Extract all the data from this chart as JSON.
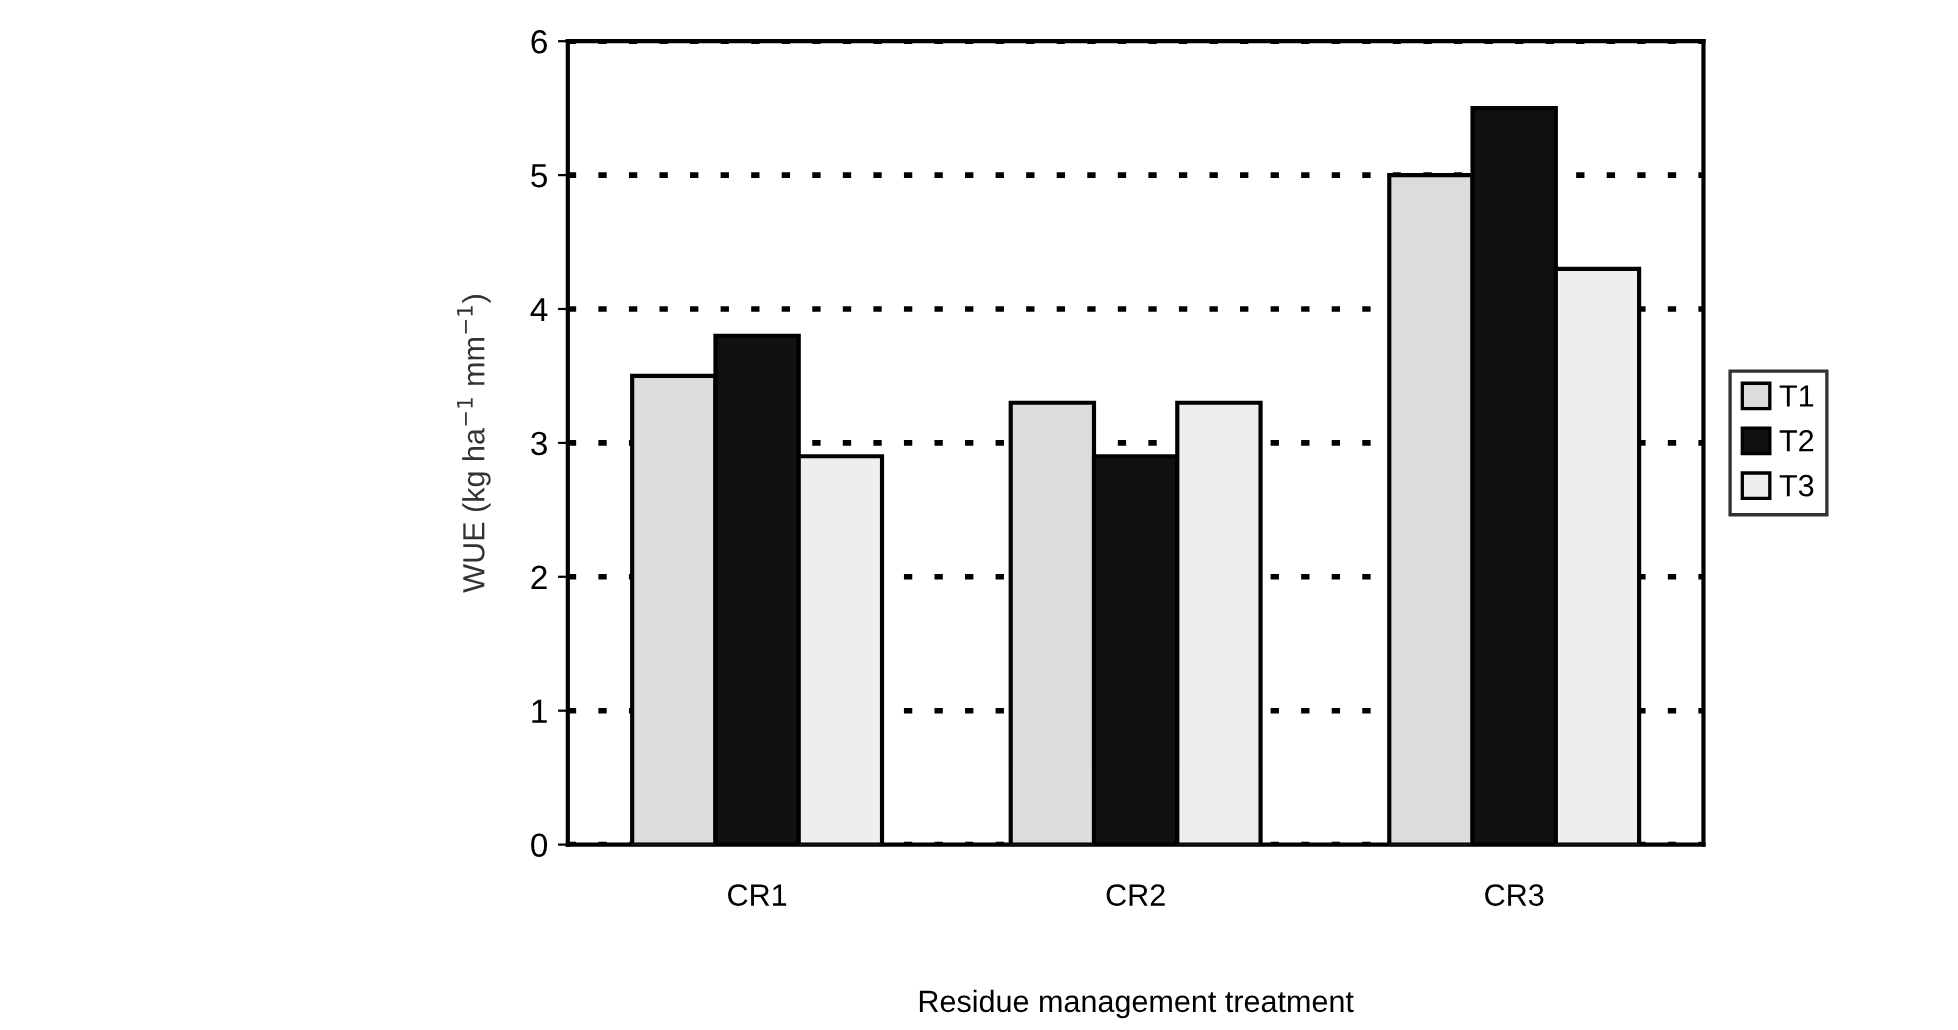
{
  "chart_data": {
    "type": "bar",
    "xlabel": "Residue management treatment",
    "ylabel": "WUE (kg ha$^{−1}$ mm$^{−1}$)",
    "categories": [
      "CR1",
      "CR2",
      "CR3"
    ],
    "series": [
      {
        "name": "T1",
        "color": "#dcdcdc",
        "values": [
          3.5,
          3.3,
          5.0
        ]
      },
      {
        "name": "T2",
        "color": "#111111",
        "values": [
          3.8,
          2.9,
          5.5
        ]
      },
      {
        "name": "T3",
        "color": "#eeeeee",
        "values": [
          2.9,
          3.3,
          4.3
        ]
      }
    ],
    "ylim": [
      0,
      6
    ],
    "yticks": [
      0,
      1,
      2,
      3,
      4,
      5,
      6
    ],
    "grid": "y",
    "legend": "right"
  }
}
